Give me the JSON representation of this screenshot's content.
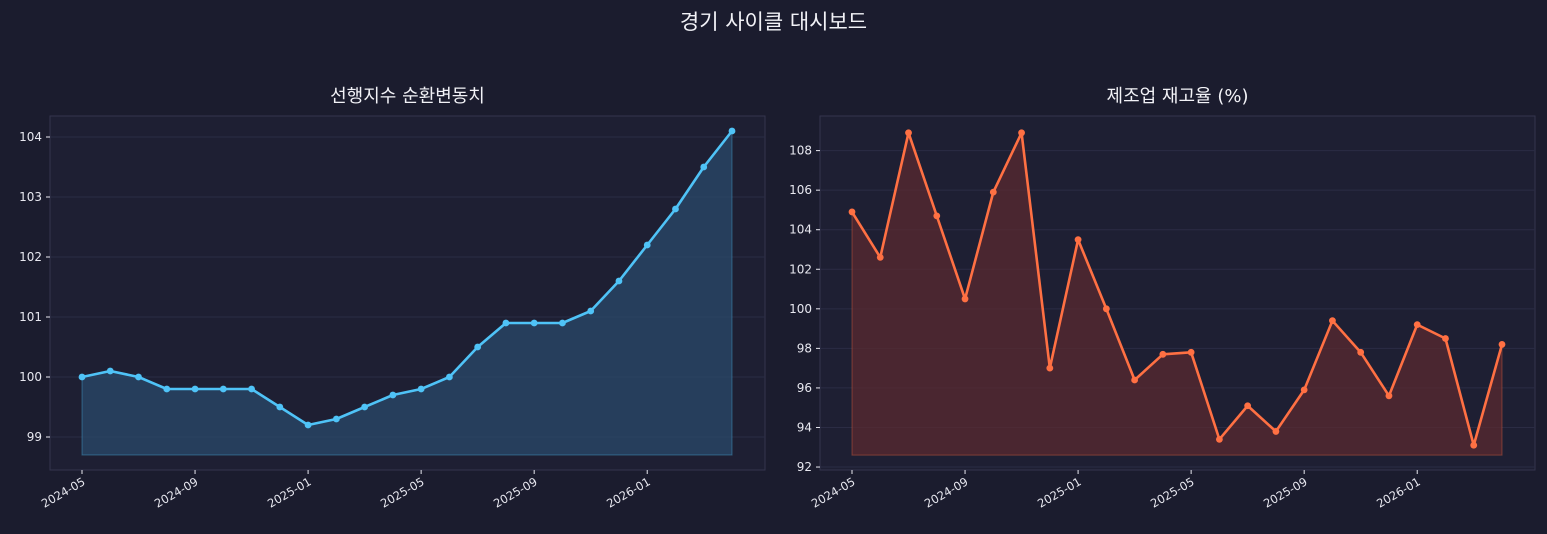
{
  "page": {
    "title": "경기 사이클 대시보드"
  },
  "colors": {
    "background": "#1b1c2e",
    "axes_bg": "#1e1f33",
    "grid": "#2b2c44",
    "spine": "#34354d",
    "text": "#e8e8f0"
  },
  "chart_data": [
    {
      "type": "area",
      "title": "선행지수 순환변동치",
      "xlabel": "",
      "ylabel": "",
      "x": [
        "2024-05",
        "2024-06",
        "2024-07",
        "2024-08",
        "2024-09",
        "2024-10",
        "2024-11",
        "2024-12",
        "2025-01",
        "2025-02",
        "2025-03",
        "2025-04",
        "2025-05",
        "2025-06",
        "2025-07",
        "2025-08",
        "2025-09",
        "2025-10",
        "2025-11",
        "2025-12",
        "2026-01",
        "2026-02",
        "2026-03",
        "2026-04"
      ],
      "values": [
        100.0,
        100.1,
        100.0,
        99.8,
        99.8,
        99.8,
        99.8,
        99.5,
        99.2,
        99.3,
        99.5,
        99.7,
        99.8,
        100.0,
        100.5,
        100.9,
        100.9,
        100.9,
        101.1,
        101.6,
        102.2,
        102.8,
        103.5,
        104.1
      ],
      "baseline": 98.7,
      "ylim": [
        98.45,
        104.35
      ],
      "yticks": [
        99,
        100,
        101,
        102,
        103,
        104
      ],
      "xtick_labels": [
        "2024-05",
        "2024-09",
        "2025-01",
        "2025-05",
        "2025-09",
        "2026-01"
      ],
      "line_color": "#4fc3f7",
      "fill_color": "#2a4a6b",
      "grid": true
    },
    {
      "type": "area",
      "title": "제조업 재고율 (%)",
      "xlabel": "",
      "ylabel": "",
      "x": [
        "2024-05",
        "2024-06",
        "2024-07",
        "2024-08",
        "2024-09",
        "2024-10",
        "2024-11",
        "2024-12",
        "2025-01",
        "2025-02",
        "2025-03",
        "2025-04",
        "2025-05",
        "2025-06",
        "2025-07",
        "2025-08",
        "2025-09",
        "2025-10",
        "2025-11",
        "2025-12",
        "2026-01",
        "2026-02",
        "2026-03",
        "2026-04"
      ],
      "values": [
        104.9,
        102.6,
        108.9,
        104.7,
        100.5,
        105.9,
        108.9,
        97.0,
        103.5,
        100.0,
        96.4,
        97.7,
        97.8,
        93.4,
        95.1,
        93.8,
        95.9,
        99.4,
        97.8,
        95.6,
        99.2,
        98.5,
        93.1,
        98.2
      ],
      "baseline": 92.6,
      "ylim": [
        91.85,
        109.75
      ],
      "yticks": [
        92,
        94,
        96,
        98,
        100,
        102,
        104,
        106,
        108
      ],
      "xtick_labels": [
        "2024-05",
        "2024-09",
        "2025-01",
        "2025-05",
        "2025-09",
        "2026-01"
      ],
      "line_color": "#ff7043",
      "fill_color": "#5a2a30",
      "grid": true
    }
  ]
}
